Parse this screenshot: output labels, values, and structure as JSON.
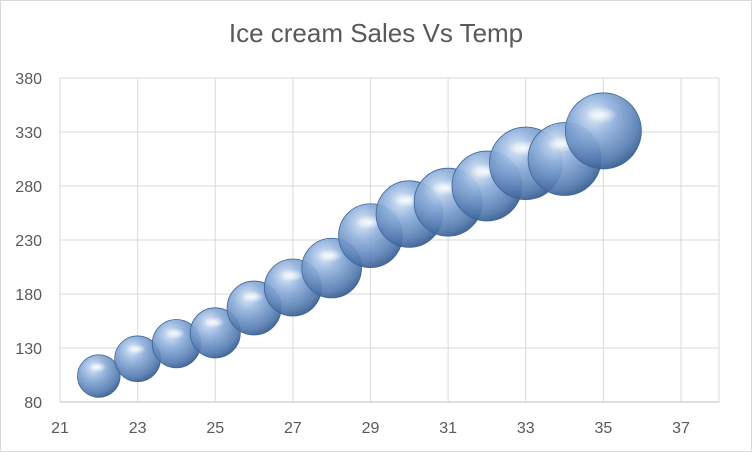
{
  "chart_data": {
    "type": "bubble",
    "title": "Ice cream Sales Vs Temp",
    "xlabel": "",
    "ylabel": "",
    "xlim": [
      21,
      37
    ],
    "ylim": [
      80,
      380
    ],
    "xticks": [
      21,
      23,
      25,
      27,
      29,
      31,
      33,
      35,
      37
    ],
    "yticks": [
      80,
      130,
      180,
      230,
      280,
      330,
      380
    ],
    "grid": true,
    "legend": "none",
    "bubble_color": "#4f81bd",
    "points": [
      {
        "x": 22,
        "y": 104,
        "size": 104
      },
      {
        "x": 23,
        "y": 120,
        "size": 120
      },
      {
        "x": 24,
        "y": 134,
        "size": 134
      },
      {
        "x": 25,
        "y": 144,
        "size": 144
      },
      {
        "x": 26,
        "y": 167,
        "size": 167
      },
      {
        "x": 27,
        "y": 186,
        "size": 186
      },
      {
        "x": 28,
        "y": 204,
        "size": 204
      },
      {
        "x": 29,
        "y": 234,
        "size": 234
      },
      {
        "x": 30,
        "y": 254,
        "size": 254
      },
      {
        "x": 31,
        "y": 265,
        "size": 265
      },
      {
        "x": 32,
        "y": 280,
        "size": 280
      },
      {
        "x": 33,
        "y": 301,
        "size": 301
      },
      {
        "x": 34,
        "y": 305,
        "size": 305
      },
      {
        "x": 35,
        "y": 331,
        "size": 331
      }
    ]
  }
}
